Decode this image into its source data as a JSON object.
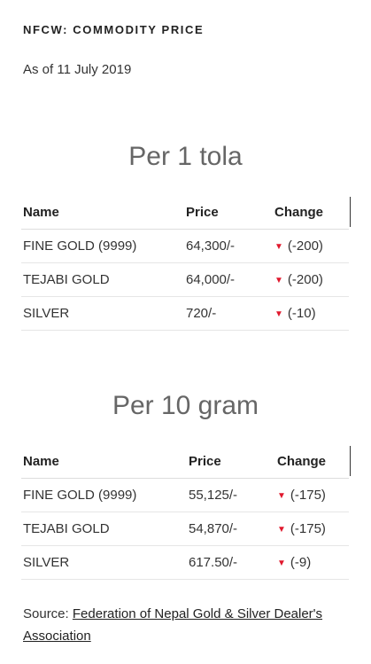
{
  "widget": {
    "title": "NFCW: COMMODITY PRICE",
    "as_of": "As of 11 July 2019"
  },
  "colors": {
    "down_arrow": "#e0182d",
    "section_title": "#666666"
  },
  "tables": [
    {
      "title": "Per 1 tola",
      "headers": {
        "name": "Name",
        "price": "Price",
        "change": "Change"
      },
      "rows": [
        {
          "name": "FINE GOLD (9999)",
          "price": "64,300/-",
          "direction": "down",
          "change": "(-200)"
        },
        {
          "name": "TEJABI GOLD",
          "price": "64,000/-",
          "direction": "down",
          "change": "(-200)"
        },
        {
          "name": "SILVER",
          "price": "720/-",
          "direction": "down",
          "change": "(-10)"
        }
      ]
    },
    {
      "title": "Per 10 gram",
      "headers": {
        "name": "Name",
        "price": "Price",
        "change": "Change"
      },
      "rows": [
        {
          "name": "FINE GOLD (9999)",
          "price": "55,125/-",
          "direction": "down",
          "change": "(-175)"
        },
        {
          "name": "TEJABI GOLD",
          "price": "54,870/-",
          "direction": "down",
          "change": "(-175)"
        },
        {
          "name": "SILVER",
          "price": "617.50/-",
          "direction": "down",
          "change": "(-9)"
        }
      ]
    }
  ],
  "source": {
    "prefix": "Source: ",
    "link_text": "Federation of Nepal Gold & Silver Dealer's Association"
  }
}
